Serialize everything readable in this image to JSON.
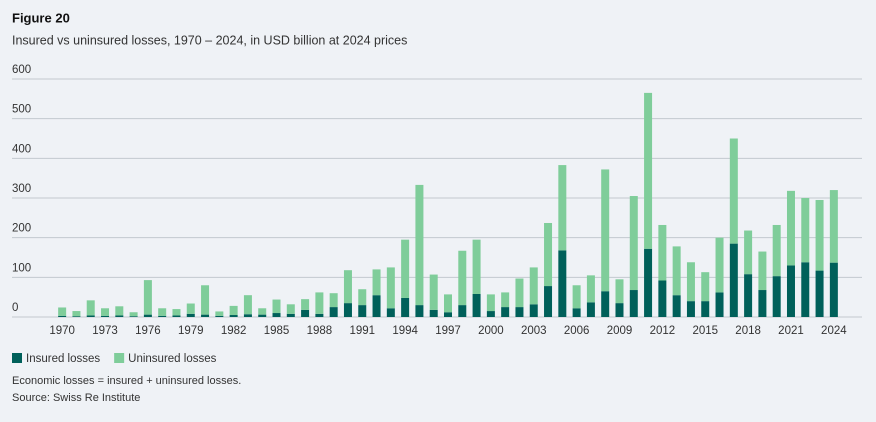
{
  "chart_data": {
    "type": "stacked_bar",
    "title": "Figure 20",
    "subtitle": "Insured vs uninsured losses, 1970 – 2024, in USD billion at 2024 prices",
    "categories": [
      "1970",
      null,
      null,
      "1973",
      null,
      null,
      "1976",
      null,
      null,
      "1979",
      null,
      null,
      "1982",
      null,
      null,
      "1985",
      null,
      null,
      "1988",
      null,
      null,
      "1991",
      null,
      null,
      "1994",
      null,
      null,
      "1997",
      null,
      null,
      "2000",
      null,
      null,
      "2003",
      null,
      null,
      "2006",
      null,
      null,
      "2009",
      null,
      null,
      "2012",
      null,
      null,
      "2015",
      null,
      null,
      "2018",
      null,
      null,
      "2021",
      null,
      null,
      "2024"
    ],
    "series": [
      {
        "name": "Insured losses",
        "color": "#00605a",
        "values": [
          3,
          2,
          4,
          3,
          4,
          2,
          6,
          3,
          4,
          8,
          6,
          3,
          5,
          7,
          6,
          10,
          8,
          18,
          8,
          25,
          35,
          30,
          55,
          22,
          48,
          30,
          18,
          12,
          30,
          58,
          15,
          25,
          25,
          32,
          78,
          168,
          22,
          37,
          65,
          35,
          68,
          172,
          92,
          55,
          40,
          40,
          62,
          185,
          108,
          68,
          103,
          130,
          138,
          117,
          137
        ]
      },
      {
        "name": "Uninsured losses",
        "color": "#7fcd9a",
        "values": [
          21,
          13,
          38,
          19,
          23,
          10,
          87,
          19,
          16,
          26,
          74,
          11,
          23,
          48,
          16,
          34,
          24,
          27,
          54,
          35,
          83,
          40,
          65,
          103,
          147,
          303,
          89,
          45,
          137,
          137,
          42,
          37,
          72,
          93,
          159,
          215,
          58,
          68,
          307,
          60,
          237,
          393,
          140,
          123,
          98,
          73,
          138,
          265,
          110,
          97,
          129,
          188,
          162,
          178,
          183
        ]
      }
    ],
    "ylim": [
      0,
      600
    ],
    "yticks": [
      0,
      100,
      200,
      300,
      400,
      500,
      600
    ],
    "grid": true,
    "notes": [
      "Economic losses = insured + uninsured losses.",
      "Source: Swiss Re Institute"
    ]
  }
}
